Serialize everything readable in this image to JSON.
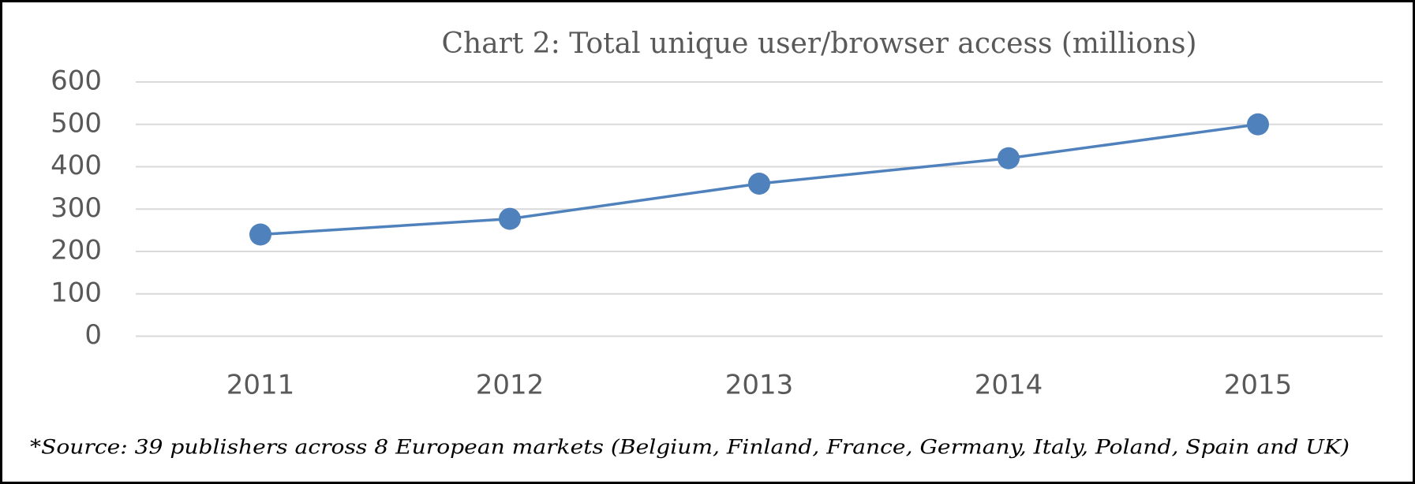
{
  "chart_data": {
    "type": "line",
    "title": "Chart 2: Total unique user/browser access (millions)",
    "categories": [
      "2011",
      "2012",
      "2013",
      "2014",
      "2015"
    ],
    "series": [
      {
        "name": "Total unique user/browser access",
        "color": "#4f81bd",
        "values": [
          240,
          277,
          360,
          420,
          500
        ]
      }
    ],
    "ylim": [
      0,
      600
    ],
    "yticks": [
      0,
      100,
      200,
      300,
      400,
      500,
      600
    ],
    "grid": true,
    "note": "*Source: 39 publishers across 8 European markets (Belgium, Finland, France, Germany, Italy, Poland, Spain and UK)"
  }
}
